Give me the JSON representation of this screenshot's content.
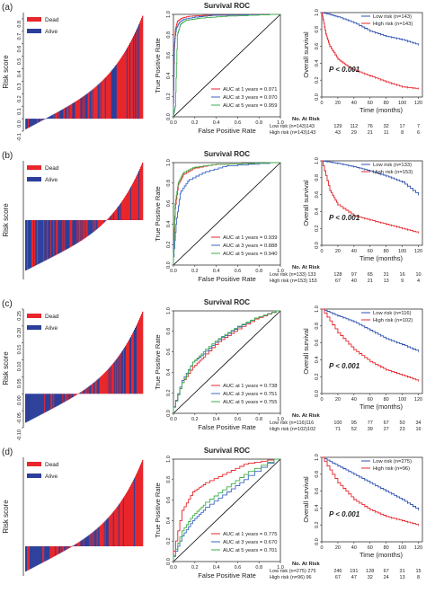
{
  "colors": {
    "dead": "#e8262b",
    "alive": "#2b3f9a",
    "auc1": "#e8262b",
    "auc3": "#3a66c4",
    "auc5": "#3fae4a",
    "low": "#2b4fb0",
    "high": "#e8262b",
    "diag": "#000000",
    "axis": "#333333"
  },
  "panels": [
    {
      "label": "(a)",
      "risk": {
        "ylabel": "Risk score",
        "legend": [
          "Dead",
          "Alive"
        ],
        "ylim": [
          -0.1,
          0.85
        ],
        "yticks": [
          0.8,
          0.7,
          0.6,
          0.5,
          0.4,
          0.3,
          0.2,
          0.1,
          0.0,
          -0.1
        ],
        "ytick_labels": [
          "0.8",
          "0.7",
          "0.6",
          "0.5",
          "0.4",
          "0.3",
          "0.2",
          "0.1",
          "0.0",
          "-0.1"
        ]
      },
      "roc": {
        "title": "Survival ROC",
        "xlabel": "False Positive Rate",
        "ylabel": "True Positive Rate",
        "ticks": [
          "0.0",
          "0.2",
          "0.4",
          "0.6",
          "0.8",
          "1.0"
        ],
        "legend": [
          "AUC at 1 years = 0.971",
          "AUC at 3 years = 0.970",
          "AUC at 5 years = 0.959"
        ],
        "auc": [
          0.971,
          0.97,
          0.959
        ]
      },
      "km": {
        "legend": [
          "Low risk (n=143)",
          "High risk (n=143)"
        ],
        "p_text": "P < 0.001",
        "xlabel": "Time (months)",
        "ylabel": "Overall survival",
        "xticks": [
          "0",
          "20",
          "40",
          "60",
          "80",
          "100",
          "120"
        ],
        "yticks": [
          "0.0",
          "0.2",
          "0.4",
          "0.6",
          "0.8",
          "1.0"
        ],
        "atrisk_title": "No. At Risk",
        "atrisk_rows": [
          {
            "label": "Low risk (n=143)143",
            "values": [
              "129",
              "112",
              "76",
              "32",
              "17",
              "7"
            ]
          },
          {
            "label": "High risk (n=143)143",
            "values": [
              "43",
              "29",
              "21",
              "11",
              "8",
              "6"
            ]
          }
        ]
      }
    },
    {
      "label": "(b)",
      "risk": {
        "ylabel": "Risk score",
        "legend": [
          "Dead",
          "Alive"
        ],
        "ylim": [
          -0.2,
          0.2
        ],
        "yticks": [],
        "ytick_labels": []
      },
      "roc": {
        "title": "Survival ROC",
        "xlabel": "False Positive Rate",
        "ylabel": "True Positive Rate",
        "ticks": [
          "0.0",
          "0.2",
          "0.4",
          "0.6",
          "0.8",
          "1.0"
        ],
        "legend": [
          "AUC at 1 years = 0.939",
          "AUC at 3 years = 0.888",
          "AUC at 5 years = 0.940"
        ],
        "auc": [
          0.939,
          0.888,
          0.94
        ]
      },
      "km": {
        "legend": [
          "Low risk (n=133)",
          "High risk (n=153)"
        ],
        "p_text": "P < 0.001",
        "xlabel": "Time (months)",
        "ylabel": "Overall survival",
        "xticks": [
          "0",
          "20",
          "40",
          "60",
          "80",
          "100",
          "120"
        ],
        "yticks": [
          "0.0",
          "0.2",
          "0.4",
          "0.6",
          "0.8",
          "1.0"
        ],
        "atrisk_title": "No. At Risk",
        "atrisk_rows": [
          {
            "label": "Low risk (n=133) 133",
            "values": [
              "128",
              "97",
              "65",
              "31",
              "16",
              "10"
            ]
          },
          {
            "label": "High risk (n=153) 153",
            "values": [
              "67",
              "40",
              "21",
              "13",
              "9",
              "4"
            ]
          }
        ]
      }
    },
    {
      "label": "(c)",
      "risk": {
        "ylabel": "Risk score",
        "legend": [
          "Dead",
          "Alive"
        ],
        "ylim": [
          -0.1,
          0.25
        ],
        "yticks": [
          0.25,
          0.2,
          0.15,
          0.1,
          0.05,
          0.0,
          -0.05,
          -0.1
        ],
        "ytick_labels": [
          "0.25",
          "0.20",
          "0.15",
          "0.10",
          "0.05",
          "0.00",
          "-0.05",
          "-0.10"
        ]
      },
      "roc": {
        "title": "Survival ROC",
        "xlabel": "False Positive Rate",
        "ylabel": "True Positive Rate",
        "ticks": [
          "0.0",
          "0.2",
          "0.4",
          "0.6",
          "0.8",
          "1.0"
        ],
        "legend": [
          "AUC at 1 years = 0.738",
          "AUC at 3 years = 0.751",
          "AUC at 5 years = 0.755"
        ],
        "auc": [
          0.738,
          0.751,
          0.755
        ]
      },
      "km": {
        "legend": [
          "Low risk (n=116)",
          "High risk (n=102)"
        ],
        "p_text": "P < 0.001",
        "xlabel": "Time (months)",
        "ylabel": "Overall survival",
        "xticks": [
          "0",
          "20",
          "40",
          "60",
          "80",
          "100",
          "120"
        ],
        "yticks": [
          "0.0",
          "0.2",
          "0.4",
          "0.6",
          "0.8",
          "1.0"
        ],
        "atrisk_title": "No. At Risk",
        "atrisk_rows": [
          {
            "label": "Low risk (n=116)116",
            "values": [
              "100",
              "95",
              "77",
              "67",
              "50",
              "34"
            ]
          },
          {
            "label": "High risk (n=102)102",
            "values": [
              "71",
              "52",
              "39",
              "27",
              "23",
              "16"
            ]
          }
        ]
      }
    },
    {
      "label": "(d)",
      "risk": {
        "ylabel": "Risk score",
        "legend": [
          "Dead",
          "Alive"
        ],
        "ylim": [
          -0.1,
          0.3
        ],
        "yticks": [],
        "ytick_labels": []
      },
      "roc": {
        "title": "Survival ROC",
        "xlabel": "False Positive Rate",
        "ylabel": "True Positive Rate",
        "ticks": [
          "0.0",
          "0.2",
          "0.4",
          "0.6",
          "0.8",
          "1.0"
        ],
        "legend": [
          "AUC at 1 years = 0.775",
          "AUC at 3 years = 0.670",
          "AUC at 5 years = 0.701"
        ],
        "auc": [
          0.775,
          0.67,
          0.701
        ]
      },
      "km": {
        "legend": [
          "Low risk (n=275)",
          "High risk (n=96)"
        ],
        "p_text": "P < 0.001",
        "xlabel": "Time (months)",
        "ylabel": "Overall survival",
        "xticks": [
          "0",
          "20",
          "40",
          "60",
          "80",
          "100",
          "120"
        ],
        "yticks": [
          "0.0",
          "0.2",
          "0.4",
          "0.6",
          "0.8",
          "1.0"
        ],
        "atrisk_title": "No. At Risk",
        "atrisk_rows": [
          {
            "label": "Low risk (n=275) 275",
            "values": [
              "246",
              "191",
              "128",
              "67",
              "31",
              "15"
            ]
          },
          {
            "label": "High risk (n=96) 96",
            "values": [
              "67",
              "47",
              "32",
              "24",
              "13",
              "8"
            ]
          }
        ]
      }
    }
  ],
  "chart_data": [
    {
      "type": "bar",
      "panel": "(a) risk score",
      "x": "patients ranked by risk score",
      "ylim": [
        -0.1,
        0.85
      ],
      "series": [
        {
          "name": "Dead"
        },
        {
          "name": "Alive"
        }
      ],
      "shape": "monotonic increasing from about -0.09 to 0.82"
    },
    {
      "type": "line",
      "panel": "(a) Survival ROC",
      "title": "Survival ROC",
      "xlabel": "False Positive Rate",
      "ylabel": "True Positive Rate",
      "xlim": [
        0,
        1
      ],
      "ylim": [
        0,
        1
      ],
      "series": [
        {
          "name": "AUC at 1 years = 0.971",
          "x": [
            0,
            0.01,
            0.02,
            0.04,
            0.08,
            0.15,
            0.3,
            1
          ],
          "y": [
            0,
            0.65,
            0.85,
            0.93,
            0.96,
            0.98,
            0.99,
            1
          ]
        },
        {
          "name": "AUC at 3 years = 0.970",
          "x": [
            0,
            0.01,
            0.03,
            0.06,
            0.1,
            0.2,
            0.4,
            1
          ],
          "y": [
            0,
            0.7,
            0.86,
            0.92,
            0.95,
            0.97,
            0.99,
            1
          ]
        },
        {
          "name": "AUC at 5 years = 0.959",
          "x": [
            0,
            0.02,
            0.04,
            0.07,
            0.12,
            0.25,
            0.5,
            1
          ],
          "y": [
            0,
            0.1,
            0.8,
            0.9,
            0.94,
            0.96,
            0.98,
            1
          ]
        }
      ]
    },
    {
      "type": "line",
      "panel": "(a) Kaplan-Meier",
      "xlabel": "Time (months)",
      "ylabel": "Overall survival",
      "xlim": [
        0,
        125
      ],
      "ylim": [
        0,
        1
      ],
      "series": [
        {
          "name": "Low risk (n=143)",
          "x": [
            0,
            10,
            20,
            40,
            60,
            80,
            100,
            120
          ],
          "y": [
            1,
            0.98,
            0.95,
            0.88,
            0.78,
            0.72,
            0.68,
            0.62
          ]
        },
        {
          "name": "High risk (n=143)",
          "x": [
            0,
            5,
            10,
            20,
            30,
            40,
            60,
            80,
            100,
            120
          ],
          "y": [
            1,
            0.75,
            0.6,
            0.45,
            0.38,
            0.32,
            0.25,
            0.18,
            0.12,
            0.1
          ]
        }
      ]
    },
    {
      "type": "line",
      "panel": "(b) Survival ROC",
      "title": "Survival ROC",
      "series": [
        {
          "name": "AUC at 1 years = 0.939",
          "x": [
            0,
            0.02,
            0.05,
            0.1,
            0.2,
            0.4,
            1
          ],
          "y": [
            0,
            0.55,
            0.78,
            0.88,
            0.94,
            0.98,
            1
          ]
        },
        {
          "name": "AUC at 3 years = 0.888",
          "x": [
            0,
            0.03,
            0.07,
            0.15,
            0.3,
            0.5,
            1
          ],
          "y": [
            0,
            0.4,
            0.7,
            0.82,
            0.9,
            0.96,
            1
          ]
        },
        {
          "name": "AUC at 5 years = 0.940",
          "x": [
            0,
            0.02,
            0.05,
            0.1,
            0.2,
            0.4,
            1
          ],
          "y": [
            0,
            0.6,
            0.8,
            0.9,
            0.95,
            0.98,
            1
          ]
        }
      ]
    },
    {
      "type": "line",
      "panel": "(b) Kaplan-Meier",
      "series": [
        {
          "name": "Low risk (n=133)",
          "x": [
            0,
            20,
            40,
            60,
            80,
            100,
            120
          ],
          "y": [
            1,
            0.97,
            0.93,
            0.88,
            0.82,
            0.75,
            0.6
          ]
        },
        {
          "name": "High risk (n=153)",
          "x": [
            0,
            10,
            20,
            40,
            60,
            80,
            100,
            120
          ],
          "y": [
            1,
            0.65,
            0.48,
            0.35,
            0.3,
            0.25,
            0.2,
            0.15
          ]
        }
      ]
    },
    {
      "type": "line",
      "panel": "(c) Survival ROC",
      "title": "Survival ROC",
      "series": [
        {
          "name": "AUC at 1 years = 0.738",
          "x": [
            0,
            0.1,
            0.2,
            0.3,
            0.45,
            0.6,
            0.8,
            1
          ],
          "y": [
            0,
            0.3,
            0.45,
            0.55,
            0.7,
            0.8,
            0.92,
            1
          ]
        },
        {
          "name": "AUC at 3 years = 0.751",
          "x": [
            0,
            0.1,
            0.2,
            0.3,
            0.45,
            0.6,
            0.8,
            1
          ],
          "y": [
            0,
            0.32,
            0.5,
            0.58,
            0.72,
            0.82,
            0.93,
            1
          ]
        },
        {
          "name": "AUC at 5 years = 0.755",
          "x": [
            0,
            0.1,
            0.2,
            0.3,
            0.45,
            0.6,
            0.8,
            1
          ],
          "y": [
            0,
            0.3,
            0.5,
            0.6,
            0.73,
            0.83,
            0.93,
            1
          ]
        }
      ]
    },
    {
      "type": "line",
      "panel": "(c) Kaplan-Meier",
      "series": [
        {
          "name": "Low risk (n=116)",
          "x": [
            0,
            20,
            40,
            60,
            80,
            100,
            120
          ],
          "y": [
            1,
            0.92,
            0.85,
            0.75,
            0.65,
            0.58,
            0.5
          ]
        },
        {
          "name": "High risk (n=102)",
          "x": [
            0,
            20,
            40,
            60,
            80,
            100,
            120
          ],
          "y": [
            1,
            0.72,
            0.52,
            0.38,
            0.28,
            0.22,
            0.15
          ]
        }
      ]
    },
    {
      "type": "line",
      "panel": "(d) Survival ROC",
      "title": "Survival ROC",
      "series": [
        {
          "name": "AUC at 1 years = 0.775",
          "x": [
            0,
            0.1,
            0.2,
            0.3,
            0.5,
            0.7,
            1
          ],
          "y": [
            0,
            0.5,
            0.68,
            0.75,
            0.85,
            0.95,
            1
          ]
        },
        {
          "name": "AUC at 3 years = 0.670",
          "x": [
            0,
            0.1,
            0.2,
            0.3,
            0.5,
            0.7,
            1
          ],
          "y": [
            0,
            0.25,
            0.4,
            0.5,
            0.65,
            0.8,
            1
          ]
        },
        {
          "name": "AUC at 5 years = 0.701",
          "x": [
            0,
            0.1,
            0.2,
            0.3,
            0.5,
            0.7,
            1
          ],
          "y": [
            0,
            0.3,
            0.45,
            0.55,
            0.7,
            0.85,
            1
          ]
        }
      ]
    },
    {
      "type": "line",
      "panel": "(d) Kaplan-Meier",
      "series": [
        {
          "name": "Low risk (n=275)",
          "x": [
            0,
            20,
            40,
            60,
            80,
            100,
            120
          ],
          "y": [
            1,
            0.9,
            0.8,
            0.7,
            0.6,
            0.5,
            0.38
          ]
        },
        {
          "name": "High risk (n=96)",
          "x": [
            0,
            20,
            40,
            60,
            80,
            100,
            120
          ],
          "y": [
            1,
            0.7,
            0.5,
            0.38,
            0.3,
            0.25,
            0.2
          ]
        }
      ]
    }
  ]
}
